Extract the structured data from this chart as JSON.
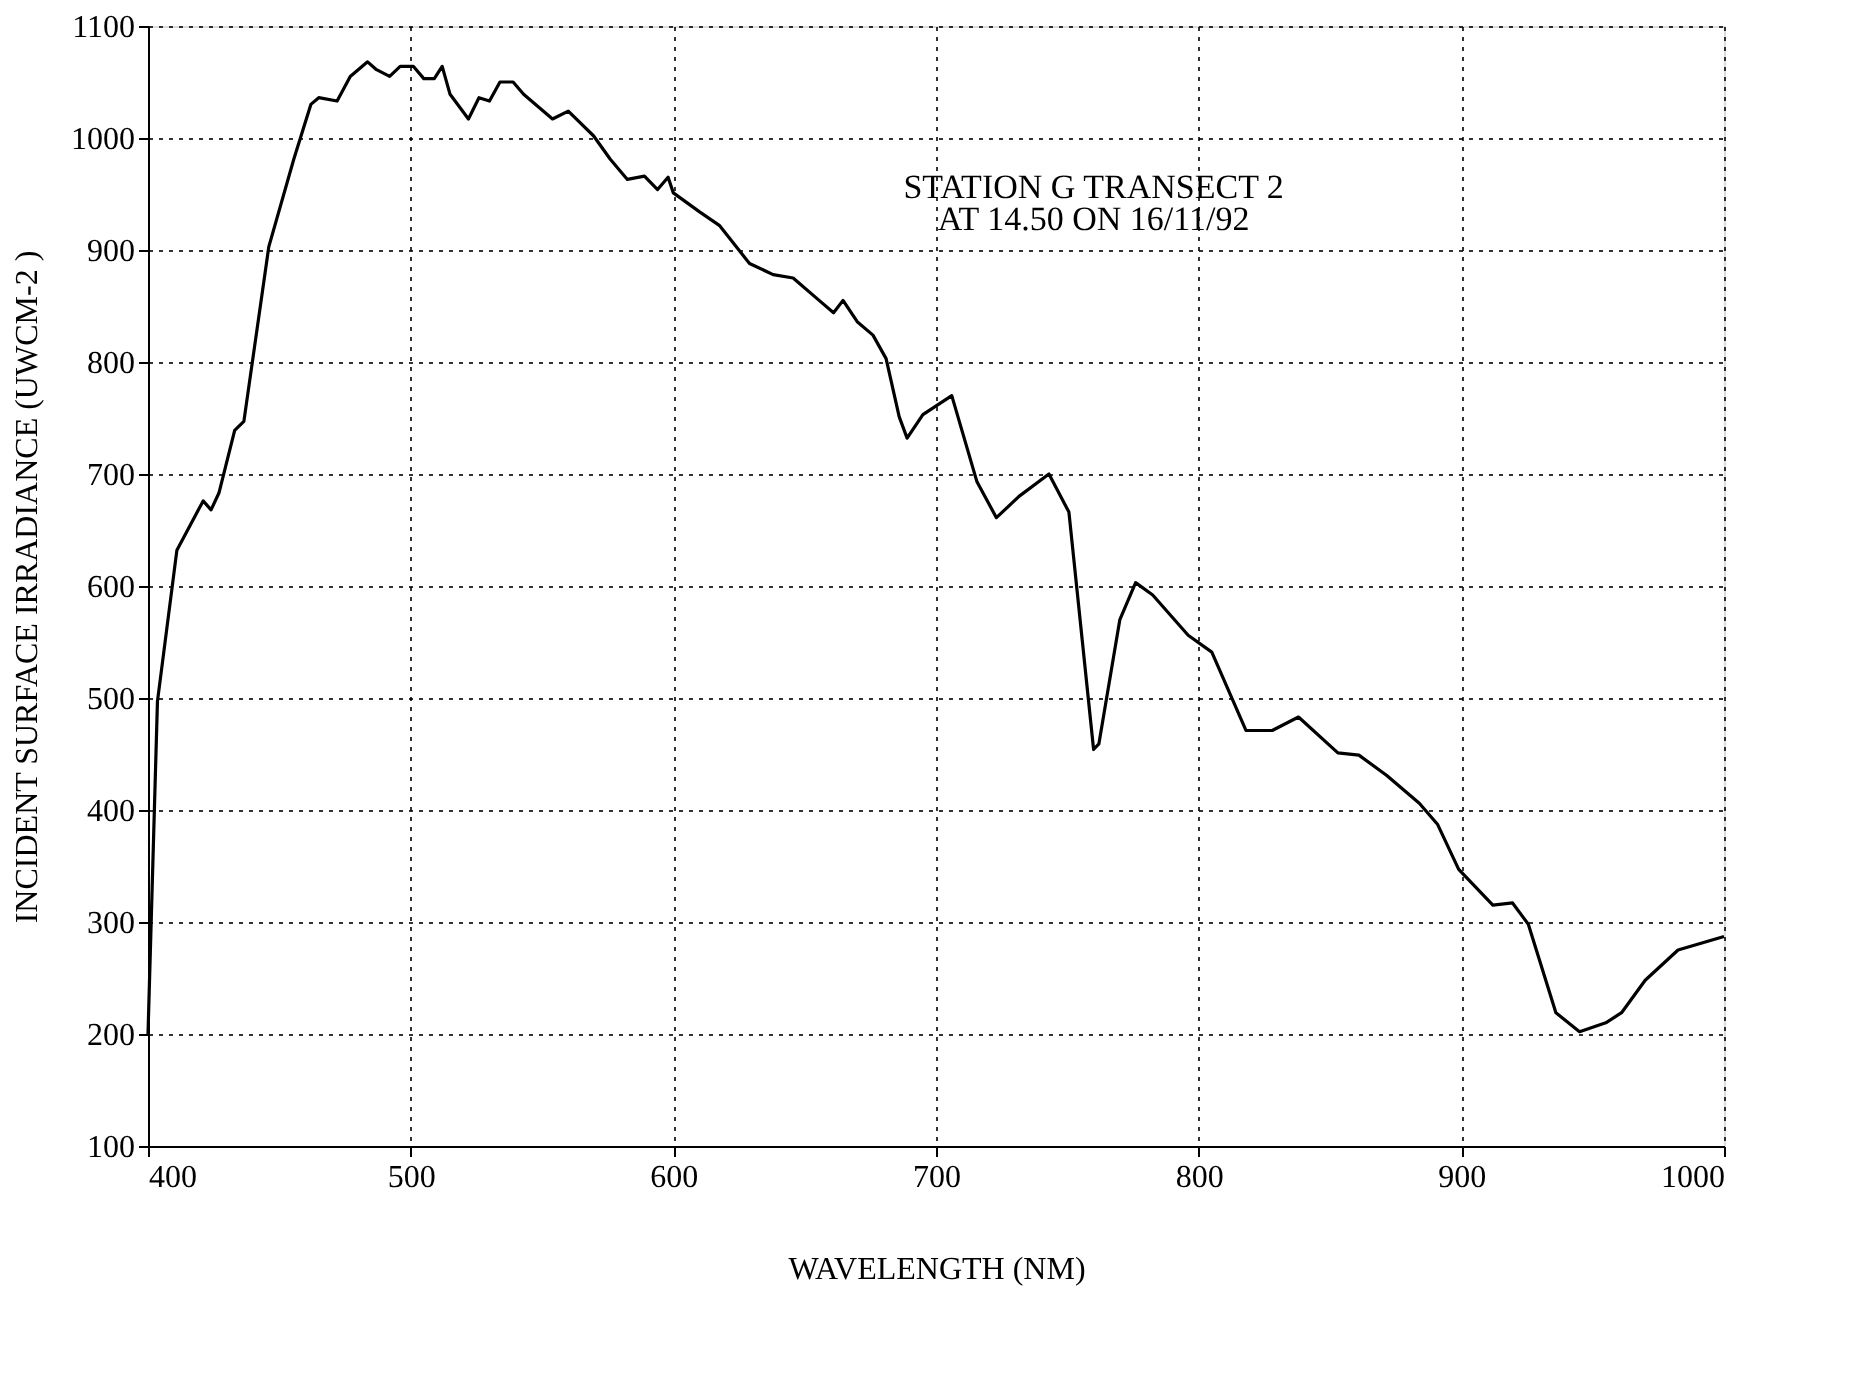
{
  "chart_data": {
    "type": "line",
    "xlabel": "WAVELENGTH (NM)",
    "ylabel": "INCIDENT SURFACE IRRADIANCE (UWCM-2 )",
    "annotations": [
      "STATION G TRANSECT 2\nAT 14.50 ON 16/11/92"
    ],
    "xlim": [
      400,
      1000
    ],
    "xticks": [
      400,
      500,
      600,
      700,
      800,
      900,
      1000
    ],
    "ylim": [
      100,
      1100
    ],
    "yticks": [
      100,
      200,
      300,
      400,
      500,
      600,
      700,
      800,
      900,
      1000,
      1100
    ],
    "grid": true,
    "marker": "none",
    "line_style": "solid",
    "series": [
      {
        "color": "#000000",
        "x": [
          400,
          403.6,
          411,
          421,
          424,
          427,
          433,
          436.5,
          446,
          455.5,
          462,
          465,
          472,
          477,
          483.6,
          487,
          492,
          496,
          501,
          505,
          509,
          512,
          515,
          522,
          526,
          530,
          534,
          539,
          543,
          554,
          560,
          569.6,
          576,
          582.5,
          589,
          594,
          598,
          600,
          610,
          617.5,
          629,
          638,
          645.6,
          655.5,
          661,
          664.6,
          670,
          676,
          681,
          686,
          689,
          695,
          706,
          715.6,
          723,
          731.6,
          743,
          750.6,
          760,
          762,
          770,
          776,
          782.5,
          796,
          805,
          818,
          828,
          838,
          853,
          861,
          871.5,
          884,
          891,
          899,
          912,
          919.5,
          925.5,
          936,
          945,
          955,
          961,
          970,
          982.5,
          1000
        ],
        "values": [
          200,
          497,
          632,
          676,
          668,
          683,
          739,
          747,
          903,
          981,
          1030,
          1036,
          1033,
          1055,
          1068,
          1061,
          1055,
          1064,
          1064,
          1053,
          1053,
          1064,
          1039,
          1017,
          1036,
          1033,
          1050,
          1050,
          1039,
          1017,
          1024,
          1002,
          981,
          963,
          966,
          954,
          965,
          951,
          934,
          922,
          888,
          878,
          875,
          855,
          844,
          855,
          836,
          824,
          803,
          751,
          732,
          753,
          770,
          693,
          661,
          680,
          700,
          666,
          454,
          459,
          570,
          603,
          592,
          556,
          541,
          471,
          471,
          483,
          451,
          449,
          431,
          406,
          387,
          347,
          315,
          317,
          298,
          219,
          202,
          210,
          219,
          248,
          275,
          287
        ]
      }
    ]
  }
}
